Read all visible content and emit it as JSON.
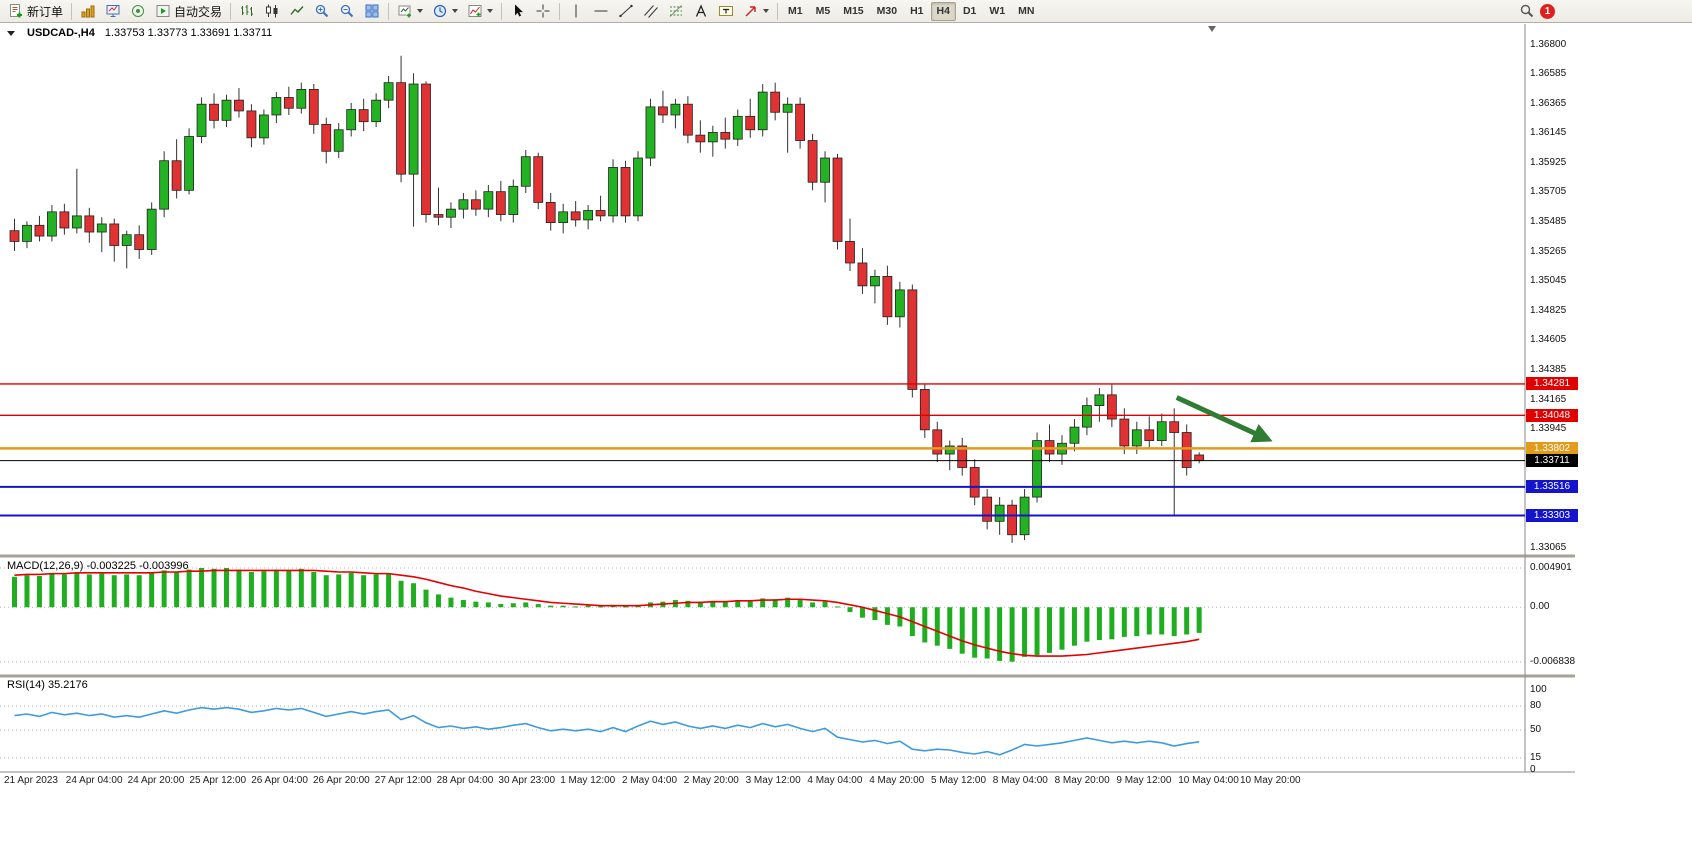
{
  "toolbar": {
    "new_order_label": "新订单",
    "auto_trading_label": "自动交易",
    "timeframes": [
      "M1",
      "M5",
      "M15",
      "M30",
      "H1",
      "H4",
      "D1",
      "W1",
      "MN"
    ],
    "active_timeframe": "H4",
    "notification_count": "1",
    "icons": [
      "new-order-icon",
      "market-depth-icon",
      "charts-icon",
      "signals-icon",
      "auto-trading-icon",
      "bar-chart-icon",
      "candlestick-chart-icon",
      "line-chart-icon",
      "zoom-in-icon",
      "zoom-out-icon",
      "tile-windows-icon",
      "profiles-icon",
      "clock-icon",
      "indicators-icon",
      "cursor-icon",
      "crosshair-icon",
      "vertical-line-icon",
      "horizontal-line-icon",
      "trendline-icon",
      "channel-icon",
      "fibonacci-icon",
      "text-icon",
      "text-label-icon",
      "arrows-icon",
      "search-icon",
      "notification-badge"
    ]
  },
  "chart": {
    "symbol_period": "USDCAD-,H4",
    "ohlc_text": "1.33753 1.33773 1.33691 1.33711"
  },
  "chart_data": [
    {
      "type": "candlestick",
      "symbol": "USDCAD-",
      "timeframe": "H4",
      "ohlc_header": {
        "open": "1.33753",
        "high": "1.33773",
        "low": "1.33691",
        "close": "1.33711"
      },
      "ylim": [
        1.33065,
        1.368
      ],
      "y_ticks": [
        "1.36800",
        "1.36585",
        "1.36365",
        "1.36145",
        "1.35925",
        "1.35705",
        "1.35485",
        "1.35265",
        "1.35045",
        "1.34825",
        "1.34605",
        "1.34385",
        "1.34165",
        "1.33945",
        "1.33065"
      ],
      "x_labels": [
        "21 Apr 2023",
        "24 Apr 04:00",
        "24 Apr 20:00",
        "25 Apr 12:00",
        "26 Apr 04:00",
        "26 Apr 20:00",
        "27 Apr 12:00",
        "28 Apr 04:00",
        "30 Apr 23:00",
        "1 May 12:00",
        "2 May 04:00",
        "2 May 20:00",
        "3 May 12:00",
        "4 May 04:00",
        "4 May 20:00",
        "5 May 12:00",
        "8 May 04:00",
        "8 May 20:00",
        "9 May 12:00",
        "10 May 04:00",
        "10 May 20:00"
      ],
      "bull_color": "#22b222",
      "bear_color": "#e03232",
      "candles": [
        [
          1.3542,
          1.3551,
          1.3527,
          1.3534
        ],
        [
          1.3534,
          1.3549,
          1.3529,
          1.3546
        ],
        [
          1.3546,
          1.3553,
          1.3534,
          1.3538
        ],
        [
          1.3538,
          1.3561,
          1.3534,
          1.3556
        ],
        [
          1.3556,
          1.3562,
          1.3539,
          1.3544
        ],
        [
          1.3544,
          1.3588,
          1.354,
          1.3553
        ],
        [
          1.3553,
          1.3559,
          1.3533,
          1.3541
        ],
        [
          1.3541,
          1.3552,
          1.3526,
          1.3547
        ],
        [
          1.3547,
          1.3551,
          1.3519,
          1.3531
        ],
        [
          1.3531,
          1.3542,
          1.3514,
          1.3539
        ],
        [
          1.3539,
          1.3546,
          1.3521,
          1.3528
        ],
        [
          1.3528,
          1.3563,
          1.3524,
          1.3558
        ],
        [
          1.3558,
          1.3601,
          1.3552,
          1.3594
        ],
        [
          1.3594,
          1.361,
          1.3566,
          1.3572
        ],
        [
          1.3572,
          1.3618,
          1.3569,
          1.3612
        ],
        [
          1.3612,
          1.3641,
          1.3607,
          1.3636
        ],
        [
          1.3636,
          1.3644,
          1.3618,
          1.3624
        ],
        [
          1.3624,
          1.3643,
          1.3619,
          1.3639
        ],
        [
          1.3639,
          1.3648,
          1.3626,
          1.3631
        ],
        [
          1.3631,
          1.3636,
          1.3604,
          1.3611
        ],
        [
          1.3611,
          1.3632,
          1.3606,
          1.3628
        ],
        [
          1.3628,
          1.3645,
          1.3622,
          1.3641
        ],
        [
          1.3641,
          1.3649,
          1.3628,
          1.3633
        ],
        [
          1.3633,
          1.3652,
          1.3629,
          1.3647
        ],
        [
          1.3647,
          1.3651,
          1.3614,
          1.3621
        ],
        [
          1.3621,
          1.3626,
          1.3592,
          1.3601
        ],
        [
          1.3601,
          1.3622,
          1.3596,
          1.3617
        ],
        [
          1.3617,
          1.3637,
          1.3612,
          1.3632
        ],
        [
          1.3632,
          1.364,
          1.3616,
          1.3623
        ],
        [
          1.3623,
          1.3644,
          1.3619,
          1.3639
        ],
        [
          1.3639,
          1.3657,
          1.3633,
          1.3652
        ],
        [
          1.3652,
          1.3672,
          1.3578,
          1.3584
        ],
        [
          1.3584,
          1.3659,
          1.3545,
          1.3651
        ],
        [
          1.3651,
          1.3653,
          1.3548,
          1.3554
        ],
        [
          1.3554,
          1.3574,
          1.3546,
          1.3552
        ],
        [
          1.3552,
          1.3563,
          1.3544,
          1.3558
        ],
        [
          1.3558,
          1.357,
          1.3551,
          1.3565
        ],
        [
          1.3565,
          1.3572,
          1.3553,
          1.3558
        ],
        [
          1.3558,
          1.3576,
          1.3552,
          1.3571
        ],
        [
          1.3571,
          1.3579,
          1.3549,
          1.3554
        ],
        [
          1.3554,
          1.358,
          1.3548,
          1.3575
        ],
        [
          1.3575,
          1.3602,
          1.357,
          1.3597
        ],
        [
          1.3597,
          1.36,
          1.3558,
          1.3563
        ],
        [
          1.3563,
          1.357,
          1.3542,
          1.3548
        ],
        [
          1.3548,
          1.3562,
          1.354,
          1.3556
        ],
        [
          1.3556,
          1.3564,
          1.3545,
          1.355
        ],
        [
          1.355,
          1.3561,
          1.3543,
          1.3557
        ],
        [
          1.3557,
          1.3568,
          1.3549,
          1.3553
        ],
        [
          1.3553,
          1.3595,
          1.3548,
          1.3589
        ],
        [
          1.3589,
          1.3594,
          1.3548,
          1.3553
        ],
        [
          1.3553,
          1.3601,
          1.3549,
          1.3596
        ],
        [
          1.3596,
          1.364,
          1.359,
          1.3634
        ],
        [
          1.3634,
          1.3646,
          1.3622,
          1.3628
        ],
        [
          1.3628,
          1.364,
          1.3618,
          1.3636
        ],
        [
          1.3636,
          1.3642,
          1.3607,
          1.3613
        ],
        [
          1.3613,
          1.3624,
          1.36,
          1.3608
        ],
        [
          1.3608,
          1.362,
          1.3597,
          1.3615
        ],
        [
          1.3615,
          1.3626,
          1.3603,
          1.361
        ],
        [
          1.361,
          1.3632,
          1.3605,
          1.3627
        ],
        [
          1.3627,
          1.364,
          1.3611,
          1.3617
        ],
        [
          1.3617,
          1.3651,
          1.3612,
          1.3645
        ],
        [
          1.3645,
          1.3652,
          1.3624,
          1.363
        ],
        [
          1.363,
          1.3641,
          1.36,
          1.3636
        ],
        [
          1.3636,
          1.3641,
          1.3603,
          1.3609
        ],
        [
          1.3609,
          1.3614,
          1.3572,
          1.3578
        ],
        [
          1.3578,
          1.3601,
          1.3563,
          1.3596
        ],
        [
          1.3596,
          1.3599,
          1.3528,
          1.3534
        ],
        [
          1.3534,
          1.3551,
          1.3512,
          1.3518
        ],
        [
          1.3518,
          1.3529,
          1.3495,
          1.3501
        ],
        [
          1.3501,
          1.3513,
          1.3488,
          1.3508
        ],
        [
          1.3508,
          1.3516,
          1.3472,
          1.3478
        ],
        [
          1.3478,
          1.3504,
          1.347,
          1.3498
        ],
        [
          1.3498,
          1.3502,
          1.3418,
          1.3424
        ],
        [
          1.3424,
          1.3428,
          1.3388,
          1.3394
        ],
        [
          1.3394,
          1.34,
          1.337,
          1.3376
        ],
        [
          1.3376,
          1.3386,
          1.3364,
          1.3382
        ],
        [
          1.3382,
          1.3388,
          1.336,
          1.3366
        ],
        [
          1.3366,
          1.3372,
          1.3338,
          1.3344
        ],
        [
          1.3344,
          1.335,
          1.332,
          1.3326
        ],
        [
          1.3326,
          1.3344,
          1.3316,
          1.3338
        ],
        [
          1.3338,
          1.3342,
          1.331,
          1.3316
        ],
        [
          1.3316,
          1.335,
          1.3312,
          1.3344
        ],
        [
          1.3344,
          1.3392,
          1.334,
          1.3386
        ],
        [
          1.3386,
          1.3398,
          1.337,
          1.3376
        ],
        [
          1.3376,
          1.339,
          1.3368,
          1.3384
        ],
        [
          1.3384,
          1.3402,
          1.3378,
          1.3396
        ],
        [
          1.3396,
          1.3418,
          1.339,
          1.3412
        ],
        [
          1.3412,
          1.3425,
          1.34,
          1.342
        ],
        [
          1.342,
          1.3428,
          1.3396,
          1.3402
        ],
        [
          1.3402,
          1.341,
          1.3376,
          1.3382
        ],
        [
          1.3382,
          1.34,
          1.3376,
          1.3394
        ],
        [
          1.3394,
          1.3404,
          1.338,
          1.3386
        ],
        [
          1.3386,
          1.3406,
          1.3382,
          1.34
        ],
        [
          1.34,
          1.341,
          1.333,
          1.3392
        ],
        [
          1.3392,
          1.3398,
          1.336,
          1.3366
        ],
        [
          1.33753,
          1.33773,
          1.33691,
          1.33711
        ]
      ],
      "levels": [
        {
          "price": 1.34281,
          "label": "1.34281",
          "color": "#e00000",
          "thickness": 1.4
        },
        {
          "price": 1.34048,
          "label": "1.34048",
          "color": "#e00000",
          "thickness": 1.4
        },
        {
          "price": 1.33802,
          "label": "1.33802",
          "color": "#e39b1c",
          "thickness": 2.6
        },
        {
          "price": 1.33711,
          "label": "1.33711",
          "color": "#000000",
          "thickness": 1
        },
        {
          "price": 1.33516,
          "label": "1.33516",
          "color": "#1414cc",
          "thickness": 2
        },
        {
          "price": 1.33303,
          "label": "1.33303",
          "color": "#1414cc",
          "thickness": 2
        }
      ],
      "arrow": {
        "from_bar": 93.2,
        "from_price": 1.3418,
        "to_bar": 99.8,
        "to_price": 1.339,
        "color": "#2e7d32"
      }
    },
    {
      "type": "bar",
      "name": "MACD",
      "label": "MACD(12,26,9) -0.003225 -0.003996",
      "ylim": [
        -0.006838,
        0.004901
      ],
      "y_ticks": [
        "0.004901",
        "0.00",
        "-0.006838"
      ],
      "histogram_color": "#1fae1f",
      "signal_color": "#e60000",
      "histogram": [
        0.0038,
        0.004,
        0.0039,
        0.0042,
        0.0041,
        0.0043,
        0.0041,
        0.0042,
        0.004,
        0.0041,
        0.004,
        0.0043,
        0.0046,
        0.0044,
        0.0047,
        0.0049,
        0.0048,
        0.0049,
        0.0047,
        0.0044,
        0.0045,
        0.0047,
        0.0046,
        0.0048,
        0.0044,
        0.004,
        0.0041,
        0.0043,
        0.004,
        0.0041,
        0.0042,
        0.0033,
        0.003,
        0.0022,
        0.0016,
        0.0012,
        0.0009,
        0.0007,
        0.0006,
        0.0004,
        0.0005,
        0.0006,
        0.0004,
        0.0002,
        0.0002,
        0.0001,
        0.0002,
        0.0001,
        0.0003,
        0.0001,
        0.0003,
        0.0006,
        0.0007,
        0.0009,
        0.0008,
        0.0007,
        0.0008,
        0.0007,
        0.0009,
        0.0008,
        0.0011,
        0.001,
        0.0012,
        0.0009,
        0.0006,
        0.0007,
        0.0001,
        -0.0006,
        -0.0013,
        -0.0016,
        -0.0022,
        -0.0024,
        -0.0036,
        -0.0044,
        -0.0048,
        -0.0052,
        -0.0058,
        -0.0063,
        -0.0064,
        -0.0067,
        -0.0068,
        -0.0062,
        -0.006,
        -0.0057,
        -0.0053,
        -0.0048,
        -0.0043,
        -0.0041,
        -0.004,
        -0.0037,
        -0.0036,
        -0.0034,
        -0.0034,
        -0.0036,
        -0.0034,
        -0.0032
      ],
      "signal": [
        0.004,
        0.0041,
        0.0041,
        0.0042,
        0.0042,
        0.0043,
        0.0043,
        0.0043,
        0.0043,
        0.0043,
        0.0043,
        0.0043,
        0.0044,
        0.0044,
        0.0045,
        0.0045,
        0.0046,
        0.0046,
        0.0046,
        0.0046,
        0.0046,
        0.0046,
        0.0046,
        0.0046,
        0.0046,
        0.0045,
        0.0044,
        0.0044,
        0.0043,
        0.0042,
        0.0042,
        0.004,
        0.0038,
        0.0035,
        0.0031,
        0.0027,
        0.0024,
        0.002,
        0.0017,
        0.0014,
        0.0012,
        0.001,
        0.0008,
        0.0006,
        0.0005,
        0.0004,
        0.0003,
        0.0002,
        0.0002,
        0.0002,
        0.0002,
        0.0003,
        0.0004,
        0.0005,
        0.0006,
        0.0006,
        0.0007,
        0.0007,
        0.0008,
        0.0008,
        0.0009,
        0.0009,
        0.001,
        0.001,
        0.0009,
        0.0008,
        0.0006,
        0.0003,
        0.0,
        -0.0004,
        -0.0008,
        -0.0012,
        -0.0018,
        -0.0024,
        -0.003,
        -0.0036,
        -0.0042,
        -0.0047,
        -0.0051,
        -0.0055,
        -0.0058,
        -0.006,
        -0.0061,
        -0.0061,
        -0.0061,
        -0.006,
        -0.0059,
        -0.0057,
        -0.0055,
        -0.0053,
        -0.0051,
        -0.0049,
        -0.0047,
        -0.0045,
        -0.0043,
        -0.004
      ]
    },
    {
      "type": "line",
      "name": "RS",
      "label": "RSI(14) 35.2176",
      "ylim": [
        0,
        100
      ],
      "y_ticks": [
        "100",
        "80",
        "50",
        "15",
        "0"
      ],
      "levels": [
        80,
        50,
        15
      ],
      "line_color": "#3e9bdc",
      "values": [
        68,
        70,
        67,
        72,
        69,
        71,
        68,
        70,
        66,
        68,
        66,
        70,
        74,
        71,
        75,
        78,
        76,
        78,
        76,
        72,
        74,
        77,
        75,
        77,
        72,
        67,
        70,
        73,
        70,
        73,
        75,
        63,
        68,
        59,
        53,
        55,
        52,
        54,
        51,
        53,
        56,
        58,
        53,
        49,
        51,
        49,
        51,
        48,
        53,
        48,
        55,
        61,
        57,
        60,
        55,
        52,
        55,
        52,
        56,
        53,
        58,
        54,
        57,
        52,
        48,
        52,
        41,
        38,
        35,
        37,
        33,
        36,
        26,
        24,
        26,
        25,
        22,
        20,
        23,
        19,
        25,
        32,
        30,
        32,
        34,
        37,
        40,
        37,
        34,
        36,
        34,
        36,
        34,
        30,
        33,
        35.2
      ]
    }
  ]
}
